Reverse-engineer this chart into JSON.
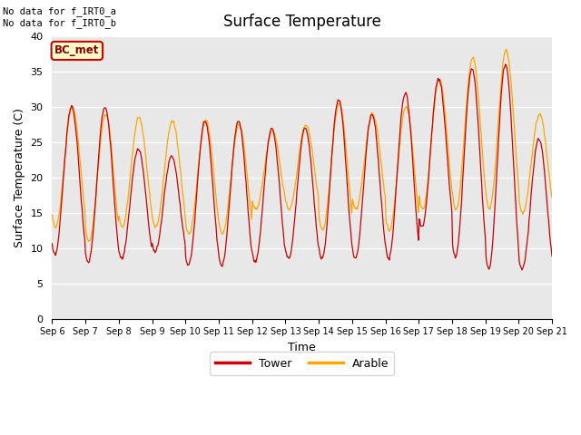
{
  "title": "Surface Temperature",
  "xlabel": "Time",
  "ylabel": "Surface Temperature (C)",
  "ylim": [
    0,
    40
  ],
  "yticks": [
    0,
    5,
    10,
    15,
    20,
    25,
    30,
    35,
    40
  ],
  "background_color": "#e8e8e8",
  "tower_color": "#cc0000",
  "arable_color": "#ffa500",
  "legend_labels": [
    "Tower",
    "Arable"
  ],
  "annotation_text": "No data for f_IRT0_a\nNo data for f_IRT0_b",
  "bc_met_label": "BC_met",
  "bc_met_bg": "#ffffcc",
  "bc_met_border": "#cc0000",
  "bc_met_text_color": "#8b0000",
  "start_day": 6,
  "end_day": 21,
  "figsize": [
    6.4,
    4.8
  ],
  "dpi": 100,
  "tower_daily": [
    {
      "min": 9.0,
      "max": 30.0
    },
    {
      "min": 8.0,
      "max": 30.0
    },
    {
      "min": 8.5,
      "max": 24.0
    },
    {
      "min": 9.5,
      "max": 23.0
    },
    {
      "min": 7.5,
      "max": 28.0
    },
    {
      "min": 7.5,
      "max": 28.0
    },
    {
      "min": 8.0,
      "max": 27.0
    },
    {
      "min": 8.5,
      "max": 27.0
    },
    {
      "min": 8.5,
      "max": 31.0
    },
    {
      "min": 8.5,
      "max": 29.0
    },
    {
      "min": 8.5,
      "max": 32.0
    },
    {
      "min": 13.0,
      "max": 34.0
    },
    {
      "min": 8.8,
      "max": 35.5
    },
    {
      "min": 7.0,
      "max": 36.0
    },
    {
      "min": 7.0,
      "max": 25.5
    }
  ],
  "arable_daily": [
    {
      "min": 13.0,
      "max": 30.0
    },
    {
      "min": 11.0,
      "max": 29.0
    },
    {
      "min": 13.0,
      "max": 28.5
    },
    {
      "min": 13.0,
      "max": 28.0
    },
    {
      "min": 12.0,
      "max": 28.0
    },
    {
      "min": 12.0,
      "max": 27.5
    },
    {
      "min": 15.5,
      "max": 26.5
    },
    {
      "min": 15.5,
      "max": 27.5
    },
    {
      "min": 12.5,
      "max": 30.5
    },
    {
      "min": 15.5,
      "max": 29.0
    },
    {
      "min": 12.5,
      "max": 30.0
    },
    {
      "min": 15.5,
      "max": 34.0
    },
    {
      "min": 15.5,
      "max": 37.0
    },
    {
      "min": 15.5,
      "max": 38.0
    },
    {
      "min": 15.0,
      "max": 29.0
    }
  ]
}
